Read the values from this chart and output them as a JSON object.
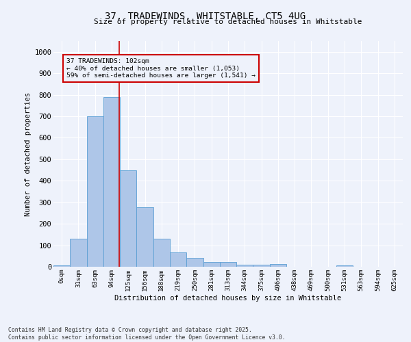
{
  "title": "37, TRADEWINDS, WHITSTABLE, CT5 4UG",
  "subtitle": "Size of property relative to detached houses in Whitstable",
  "xlabel": "Distribution of detached houses by size in Whitstable",
  "ylabel": "Number of detached properties",
  "bar_color": "#aec6e8",
  "bar_edge_color": "#5a9fd4",
  "bg_color": "#eef2fb",
  "grid_color": "#ffffff",
  "annotation_box_color": "#cc0000",
  "vline_color": "#cc0000",
  "categories": [
    "0sqm",
    "31sqm",
    "63sqm",
    "94sqm",
    "125sqm",
    "156sqm",
    "188sqm",
    "219sqm",
    "250sqm",
    "281sqm",
    "313sqm",
    "344sqm",
    "375sqm",
    "406sqm",
    "438sqm",
    "469sqm",
    "500sqm",
    "531sqm",
    "563sqm",
    "594sqm",
    "625sqm"
  ],
  "bar_heights": [
    5,
    130,
    700,
    790,
    450,
    278,
    130,
    68,
    40,
    22,
    22,
    10,
    10,
    12,
    0,
    0,
    0,
    5,
    0,
    0,
    0
  ],
  "vline_position": 3.47,
  "annotation_text": "37 TRADEWINDS: 102sqm\n← 40% of detached houses are smaller (1,053)\n59% of semi-detached houses are larger (1,541) →",
  "ylim": [
    0,
    1050
  ],
  "yticks": [
    0,
    100,
    200,
    300,
    400,
    500,
    600,
    700,
    800,
    900,
    1000
  ],
  "footer_line1": "Contains HM Land Registry data © Crown copyright and database right 2025.",
  "footer_line2": "Contains public sector information licensed under the Open Government Licence v3.0."
}
